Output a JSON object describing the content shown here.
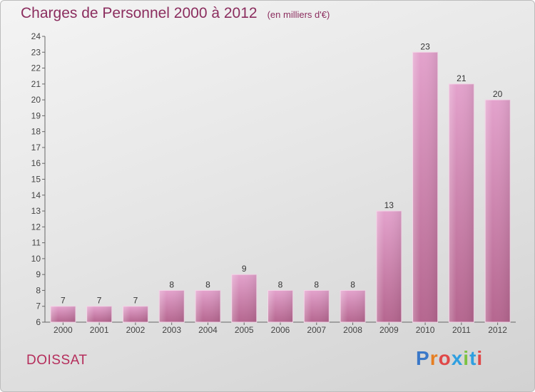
{
  "title": "Charges de Personnel 2000 à 2012",
  "subtitle": "(en milliers d'€)",
  "commune": "DOISSAT",
  "logo": {
    "letters": [
      "P",
      "r",
      "o",
      "x",
      "i",
      "t",
      "i"
    ],
    "colors": [
      "#3a78c8",
      "#e67e22",
      "#e04848",
      "#2f9fe0",
      "#7cc242",
      "#2f9fe0",
      "#e04848"
    ]
  },
  "colors": {
    "bar": "#d990bf",
    "title": "#8b2d5e",
    "axis": "#555555"
  },
  "chart_data": {
    "type": "bar",
    "title": "Charges de Personnel 2000 à 2012",
    "subtitle": "(en milliers d'€)",
    "categories": [
      "2000",
      "2001",
      "2002",
      "2003",
      "2004",
      "2005",
      "2006",
      "2007",
      "2008",
      "2009",
      "2010",
      "2011",
      "2012"
    ],
    "values": [
      7,
      7,
      7,
      8,
      8,
      9,
      8,
      8,
      8,
      13,
      23,
      21,
      20
    ],
    "ylim": [
      6,
      24
    ],
    "yticks": [
      6,
      7,
      8,
      9,
      10,
      11,
      12,
      13,
      14,
      15,
      16,
      17,
      18,
      19,
      20,
      21,
      22,
      23,
      24
    ],
    "grid": false,
    "data_labels": true
  }
}
